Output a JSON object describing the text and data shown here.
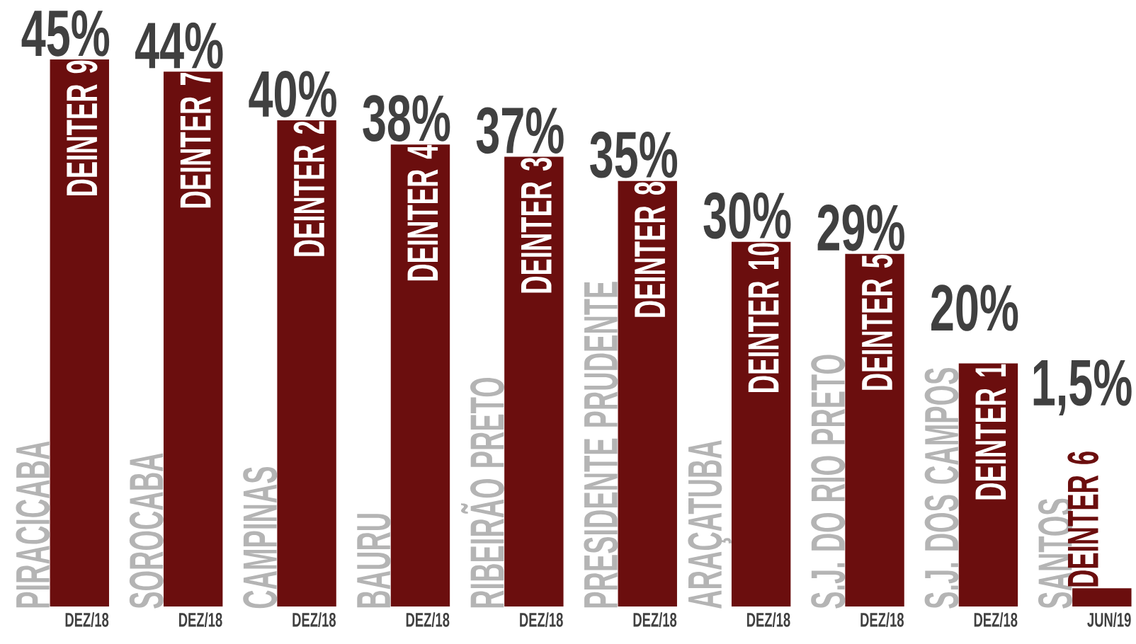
{
  "chart_data": {
    "type": "bar",
    "categories": [
      "PIRACICABA",
      "SOROCABA",
      "CAMPINAS",
      "BAURU",
      "RIBEIRÃO PRETO",
      "PRESIDENTE PRUDENTE",
      "ARAÇATUBA",
      "S.J. DO RIO PRETO",
      "S.J. DOS CAMPOS",
      "SANTOS"
    ],
    "values": [
      45,
      44,
      40,
      38,
      37,
      35,
      30,
      29,
      20,
      1.5
    ],
    "value_labels": [
      "45%",
      "44%",
      "40%",
      "38%",
      "37%",
      "35%",
      "30%",
      "29%",
      "20%",
      "1,5%"
    ],
    "color": "#6b0e0e",
    "annotations": [
      "DEINTER 9",
      "DEINTER 7",
      "DEINTER 2",
      "DEINTER 4",
      "DEINTER 3",
      "DEINTER 8",
      "DEINTER 10",
      "DEINTER 5",
      "DEINTER 1",
      "DEINTER 6",
      "DEZ/18",
      "DEZ/18",
      "DEZ/18",
      "DEZ/18",
      "DEZ/18",
      "DEZ/18",
      "DEZ/18",
      "DEZ/18",
      "DEZ/18",
      "JUN/19"
    ]
  }
}
